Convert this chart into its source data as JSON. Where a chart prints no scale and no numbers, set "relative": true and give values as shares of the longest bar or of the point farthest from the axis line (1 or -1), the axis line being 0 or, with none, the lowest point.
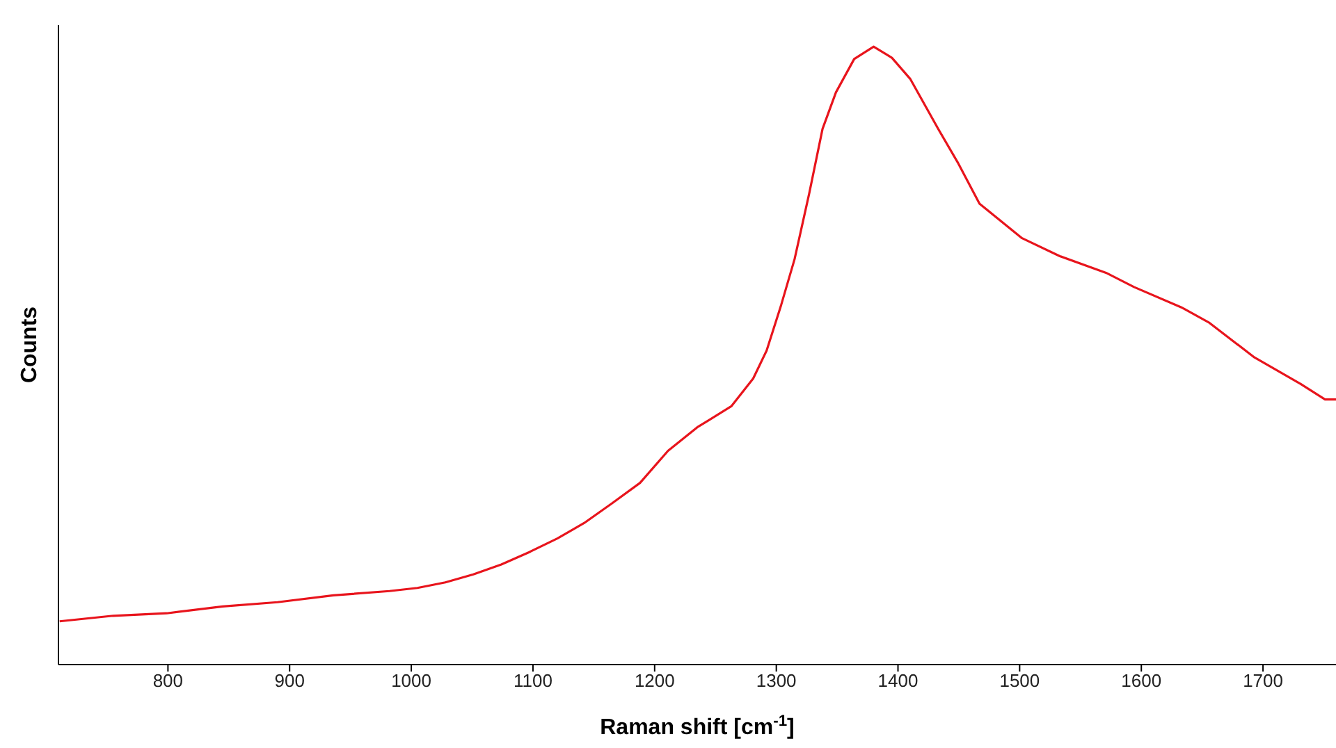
{
  "chart_data": {
    "type": "line",
    "xlabel": "Raman shift [cm$^{-1}$]",
    "ylabel": "Counts",
    "relative": true,
    "xlim": [
      710,
      1760
    ],
    "xticks": [
      800,
      900,
      1000,
      1100,
      1200,
      1300,
      1400,
      1500,
      1600,
      1700
    ],
    "x": [
      711,
      755,
      799,
      845,
      890,
      936,
      982,
      1005,
      1028,
      1051,
      1074,
      1097,
      1120,
      1142,
      1165,
      1188,
      1211,
      1235,
      1263,
      1281,
      1292,
      1304,
      1315,
      1327,
      1338,
      1349,
      1364,
      1380,
      1395,
      1410,
      1433,
      1449,
      1467,
      1502,
      1533,
      1571,
      1594,
      1633,
      1656,
      1693,
      1731,
      1751,
      1760
    ],
    "series": [
      {
        "color": "#e8141c",
        "values": [
          0.07,
          0.079,
          0.083,
          0.094,
          0.101,
          0.112,
          0.119,
          0.124,
          0.133,
          0.146,
          0.162,
          0.182,
          0.204,
          0.229,
          0.261,
          0.294,
          0.346,
          0.384,
          0.418,
          0.463,
          0.508,
          0.582,
          0.656,
          0.762,
          0.867,
          0.926,
          0.98,
          1.0,
          0.982,
          0.948,
          0.867,
          0.813,
          0.746,
          0.69,
          0.661,
          0.634,
          0.611,
          0.578,
          0.553,
          0.497,
          0.454,
          0.429,
          0.429
        ]
      }
    ],
    "grid": false,
    "legend": false,
    "marker": "none",
    "line_style": "solid"
  }
}
